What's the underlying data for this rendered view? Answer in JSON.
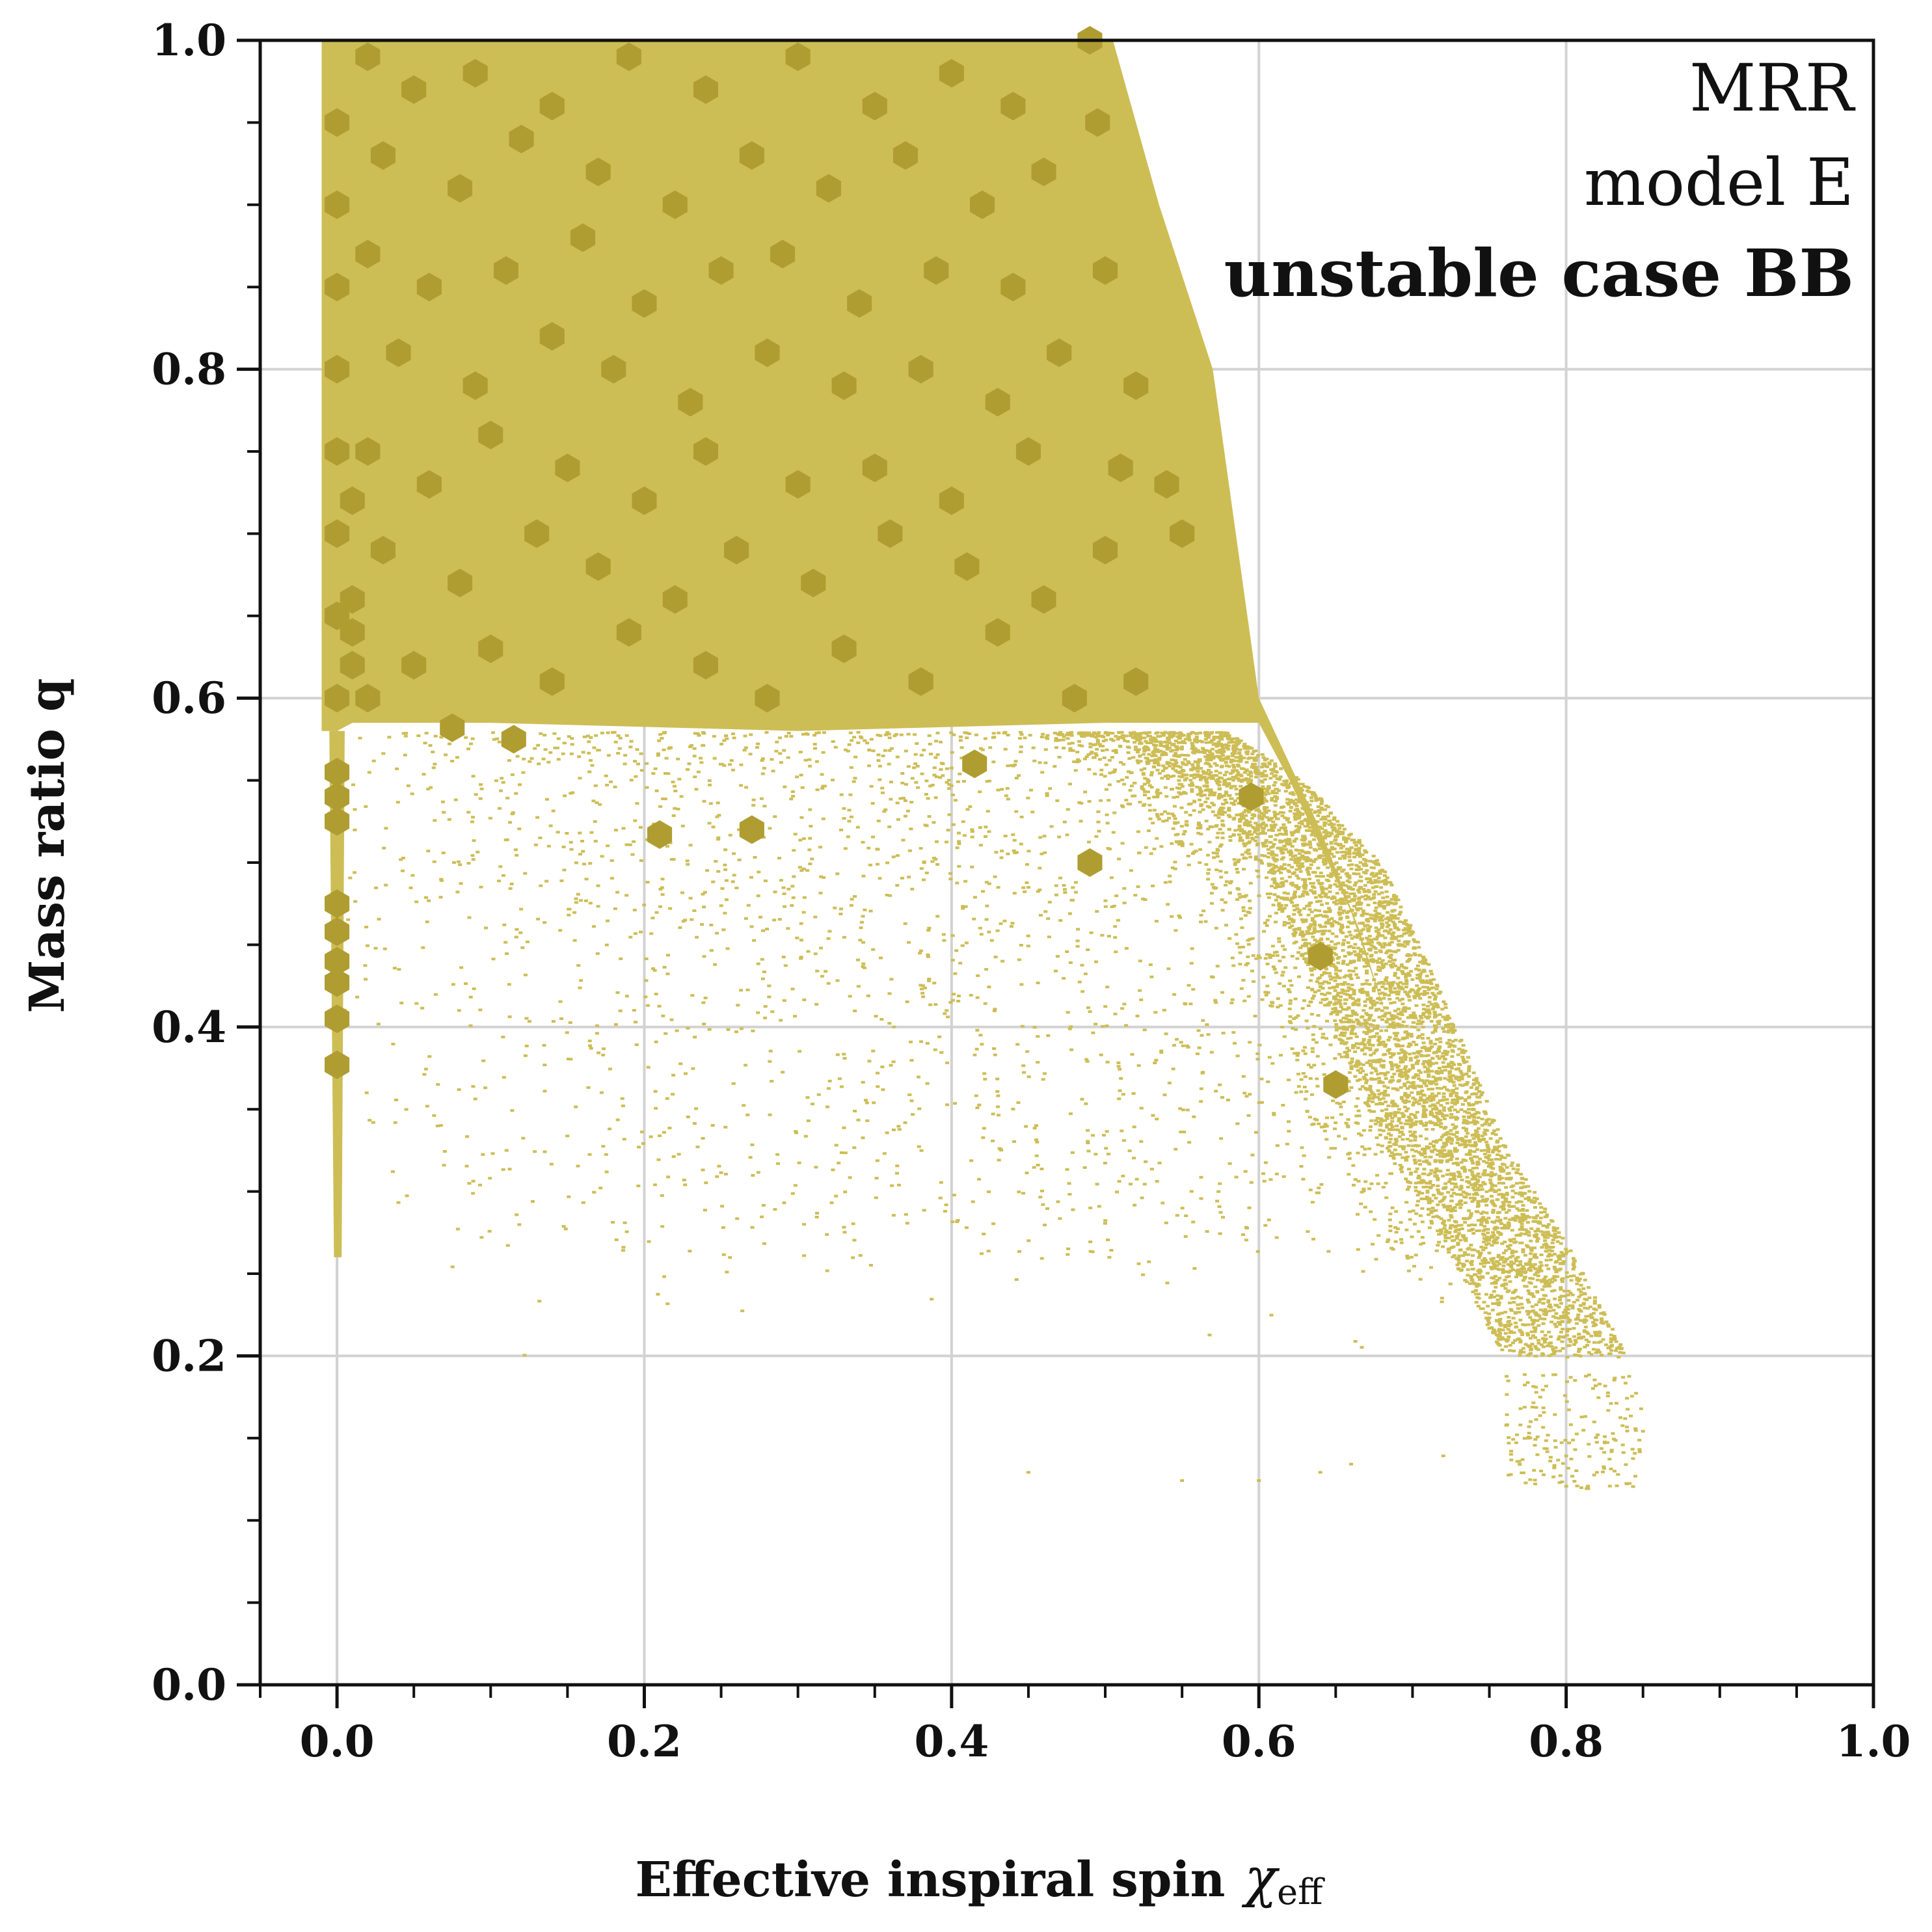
{
  "chart_data": {
    "type": "scatter",
    "title": "",
    "xlabel": "Effective inspiral spin",
    "xlabel_symbol": "χ",
    "xlabel_subscript": "eff",
    "ylabel": "Mass ratio q",
    "xlim": [
      -0.05,
      1.0
    ],
    "ylim": [
      0.0,
      1.0
    ],
    "x_ticks": [
      "0.0",
      "0.2",
      "0.4",
      "0.6",
      "0.8",
      "1.0"
    ],
    "y_ticks": [
      "0.0",
      "0.2",
      "0.4",
      "0.6",
      "0.8",
      "1.0"
    ],
    "grid": true,
    "annotations": [
      "MRR",
      "model E",
      "unstable case BB"
    ],
    "annotation_placement": "top-right",
    "colors": {
      "scatter": "#cdbd55",
      "hexbin": "#b09d32",
      "grid": "#d2d2d2",
      "axis": "#111111"
    },
    "dense_region": {
      "description_points": [
        [
          -0.01,
          1.0
        ],
        [
          0.5,
          1.0
        ],
        [
          0.57,
          0.8
        ],
        [
          0.6,
          0.6
        ],
        [
          0.65,
          0.5
        ],
        [
          0.68,
          0.4
        ],
        [
          0.66,
          0.45
        ],
        [
          0.0,
          0.58
        ]
      ],
      "q_min": 0.58,
      "q_max": 1.0,
      "x_min": -0.01
    },
    "scatter_envelope": {
      "q_range": [
        0.24,
        0.58
      ],
      "right_edge": [
        [
          0.58,
          0.58
        ],
        [
          0.63,
          0.55
        ],
        [
          0.68,
          0.5
        ],
        [
          0.72,
          0.42
        ],
        [
          0.76,
          0.33
        ],
        [
          0.8,
          0.27
        ],
        [
          0.84,
          0.2
        ]
      ],
      "sparse_tail": [
        [
          0.45,
          0.13
        ],
        [
          0.55,
          0.125
        ],
        [
          0.6,
          0.125
        ],
        [
          0.64,
          0.13
        ],
        [
          0.66,
          0.135
        ],
        [
          0.72,
          0.14
        ],
        [
          0.78,
          0.15
        ],
        [
          0.8,
          0.14
        ],
        [
          0.82,
          0.13
        ],
        [
          0.85,
          0.155
        ]
      ]
    },
    "hexbin_points": [
      [
        0.0,
        0.555
      ],
      [
        0.0,
        0.54
      ],
      [
        0.0,
        0.525
      ],
      [
        0.0,
        0.475
      ],
      [
        0.0,
        0.458
      ],
      [
        0.0,
        0.44
      ],
      [
        0.0,
        0.427
      ],
      [
        0.0,
        0.405
      ],
      [
        0.0,
        0.377
      ],
      [
        0.075,
        0.582
      ],
      [
        0.115,
        0.575
      ],
      [
        0.21,
        0.517
      ],
      [
        0.27,
        0.52
      ],
      [
        0.415,
        0.56
      ],
      [
        0.49,
        0.5
      ],
      [
        0.595,
        0.54
      ],
      [
        0.64,
        0.443
      ],
      [
        0.65,
        0.365
      ],
      [
        0.02,
        0.99
      ],
      [
        0.05,
        0.97
      ],
      [
        0.09,
        0.98
      ],
      [
        0.14,
        0.96
      ],
      [
        0.19,
        0.99
      ],
      [
        0.24,
        0.97
      ],
      [
        0.3,
        0.99
      ],
      [
        0.35,
        0.96
      ],
      [
        0.4,
        0.98
      ],
      [
        0.44,
        0.96
      ],
      [
        0.49,
        1.0
      ],
      [
        0.495,
        0.95
      ],
      [
        0.03,
        0.93
      ],
      [
        0.08,
        0.91
      ],
      [
        0.12,
        0.94
      ],
      [
        0.17,
        0.92
      ],
      [
        0.22,
        0.9
      ],
      [
        0.27,
        0.93
      ],
      [
        0.32,
        0.91
      ],
      [
        0.37,
        0.93
      ],
      [
        0.42,
        0.9
      ],
      [
        0.46,
        0.92
      ],
      [
        0.02,
        0.87
      ],
      [
        0.06,
        0.85
      ],
      [
        0.11,
        0.86
      ],
      [
        0.16,
        0.88
      ],
      [
        0.2,
        0.84
      ],
      [
        0.25,
        0.86
      ],
      [
        0.29,
        0.87
      ],
      [
        0.34,
        0.84
      ],
      [
        0.39,
        0.86
      ],
      [
        0.44,
        0.85
      ],
      [
        0.5,
        0.86
      ],
      [
        0.04,
        0.81
      ],
      [
        0.09,
        0.79
      ],
      [
        0.14,
        0.82
      ],
      [
        0.18,
        0.8
      ],
      [
        0.23,
        0.78
      ],
      [
        0.28,
        0.81
      ],
      [
        0.33,
        0.79
      ],
      [
        0.38,
        0.8
      ],
      [
        0.43,
        0.78
      ],
      [
        0.47,
        0.81
      ],
      [
        0.52,
        0.79
      ],
      [
        0.02,
        0.75
      ],
      [
        0.06,
        0.73
      ],
      [
        0.1,
        0.76
      ],
      [
        0.15,
        0.74
      ],
      [
        0.2,
        0.72
      ],
      [
        0.24,
        0.75
      ],
      [
        0.3,
        0.73
      ],
      [
        0.35,
        0.74
      ],
      [
        0.4,
        0.72
      ],
      [
        0.45,
        0.75
      ],
      [
        0.51,
        0.74
      ],
      [
        0.54,
        0.73
      ],
      [
        0.03,
        0.69
      ],
      [
        0.08,
        0.67
      ],
      [
        0.13,
        0.7
      ],
      [
        0.17,
        0.68
      ],
      [
        0.22,
        0.66
      ],
      [
        0.26,
        0.69
      ],
      [
        0.31,
        0.67
      ],
      [
        0.36,
        0.7
      ],
      [
        0.41,
        0.68
      ],
      [
        0.46,
        0.66
      ],
      [
        0.5,
        0.69
      ],
      [
        0.55,
        0.7
      ],
      [
        0.01,
        0.64
      ],
      [
        0.05,
        0.62
      ],
      [
        0.1,
        0.63
      ],
      [
        0.14,
        0.61
      ],
      [
        0.19,
        0.64
      ],
      [
        0.24,
        0.62
      ],
      [
        0.28,
        0.6
      ],
      [
        0.33,
        0.63
      ],
      [
        0.38,
        0.61
      ],
      [
        0.43,
        0.64
      ],
      [
        0.48,
        0.6
      ],
      [
        0.52,
        0.61
      ],
      [
        0.0,
        0.95
      ],
      [
        0.0,
        0.9
      ],
      [
        0.0,
        0.85
      ],
      [
        0.0,
        0.8
      ],
      [
        0.0,
        0.75
      ],
      [
        0.0,
        0.7
      ],
      [
        0.0,
        0.65
      ],
      [
        0.0,
        0.6
      ],
      [
        0.01,
        0.72
      ],
      [
        0.01,
        0.66
      ],
      [
        0.01,
        0.62
      ],
      [
        0.02,
        0.6
      ]
    ]
  }
}
